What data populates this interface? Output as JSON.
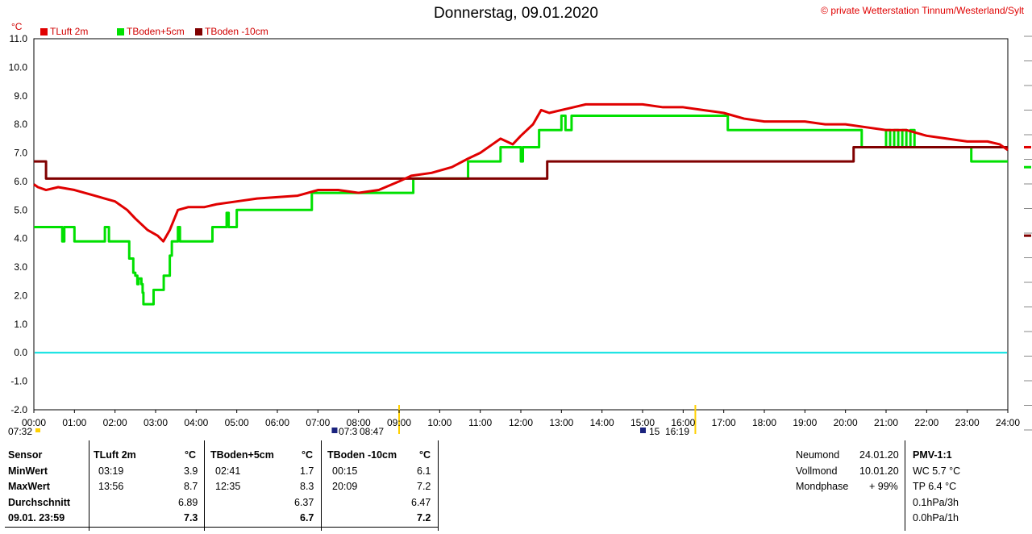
{
  "header": {
    "title": "Donnerstag, 09.01.2020",
    "copyright": "© private Wetterstation Tinnum/Westerland/Sylt",
    "unit": "°C"
  },
  "colors": {
    "tluft": "#e00000",
    "tboden5": "#00e000",
    "tboden10": "#800000",
    "zero": "#00e0e0",
    "grid": "#808080"
  },
  "chart_data": {
    "type": "line",
    "ylabel": "°C",
    "ylim": [
      -2.0,
      11.0
    ],
    "xlim": [
      0,
      24
    ],
    "grid": true,
    "legend_position": "top-left",
    "x_ticks": [
      "00:00",
      "01:00",
      "02:00",
      "03:00",
      "04:00",
      "05:00",
      "06:00",
      "07:00",
      "08:00",
      "09:00",
      "10:00",
      "11:00",
      "12:00",
      "13:00",
      "14:00",
      "15:00",
      "16:00",
      "17:00",
      "18:00",
      "19:00",
      "20:00",
      "21:00",
      "22:00",
      "23:00",
      "24:00"
    ],
    "y_ticks": [
      "11.0",
      "10.0",
      "9.0",
      "8.0",
      "7.0",
      "6.0",
      "5.0",
      "4.0",
      "3.0",
      "2.0",
      "1.0",
      "0.0",
      "-1.0",
      "-2.0"
    ],
    "series": [
      {
        "name": "TLuft 2m",
        "x": [
          0,
          0.1,
          0.3,
          0.6,
          1.0,
          1.5,
          2.0,
          2.3,
          2.5,
          2.8,
          3.05,
          3.19,
          3.35,
          3.55,
          3.8,
          4.2,
          4.5,
          5.0,
          5.5,
          6.5,
          7.0,
          7.5,
          8.0,
          8.5,
          9.0,
          9.3,
          9.8,
          10.3,
          10.7,
          11.0,
          11.3,
          11.5,
          11.8,
          12.0,
          12.3,
          12.5,
          12.7,
          13.0,
          13.3,
          13.6,
          13.93,
          14.5,
          15.0,
          15.5,
          16.0,
          16.5,
          17.0,
          17.5,
          18.0,
          18.5,
          19.0,
          19.5,
          20.0,
          20.5,
          21.0,
          21.5,
          22.0,
          22.5,
          23.0,
          23.5,
          23.8,
          24.0
        ],
        "values": [
          5.9,
          5.8,
          5.7,
          5.8,
          5.7,
          5.5,
          5.3,
          5.0,
          4.7,
          4.3,
          4.1,
          3.9,
          4.3,
          5.0,
          5.1,
          5.1,
          5.2,
          5.3,
          5.4,
          5.5,
          5.7,
          5.7,
          5.6,
          5.7,
          6.0,
          6.2,
          6.3,
          6.5,
          6.8,
          7.0,
          7.3,
          7.5,
          7.3,
          7.6,
          8.0,
          8.5,
          8.4,
          8.5,
          8.6,
          8.7,
          8.7,
          8.7,
          8.7,
          8.6,
          8.6,
          8.5,
          8.4,
          8.2,
          8.1,
          8.1,
          8.1,
          8.0,
          8.0,
          7.9,
          7.8,
          7.8,
          7.6,
          7.5,
          7.4,
          7.4,
          7.3,
          7.1
        ]
      },
      {
        "name": "TBoden+5cm",
        "x": [
          0,
          0.6,
          0.7,
          0.75,
          1.0,
          1.7,
          1.75,
          1.8,
          1.85,
          2.0,
          2.1,
          2.35,
          2.45,
          2.5,
          2.55,
          2.58,
          2.65,
          2.68,
          2.7,
          2.9,
          2.95,
          3.0,
          3.15,
          3.2,
          3.35,
          3.4,
          3.55,
          3.6,
          3.8,
          4.2,
          4.4,
          4.7,
          4.75,
          4.8,
          5.0,
          5.5,
          6.0,
          6.5,
          6.8,
          6.85,
          7.3,
          8.0,
          8.5,
          9.0,
          9.3,
          9.35,
          10.5,
          10.65,
          10.7,
          11.3,
          11.5,
          11.9,
          12.0,
          12.05,
          12.2,
          12.4,
          12.45,
          12.6,
          13.0,
          13.1,
          13.2,
          13.25,
          14.0,
          15.0,
          16.0,
          17.0,
          17.1,
          18.0,
          19.0,
          20.0,
          20.35,
          20.4,
          20.9,
          21.0,
          21.1,
          21.2,
          21.3,
          21.4,
          21.5,
          21.6,
          21.7,
          22.0,
          22.5,
          23.0,
          23.1,
          23.2,
          24.0
        ],
        "values": [
          4.4,
          4.4,
          3.9,
          4.4,
          3.9,
          3.9,
          4.4,
          4.4,
          3.9,
          3.9,
          3.9,
          3.3,
          2.8,
          2.7,
          2.4,
          2.6,
          2.4,
          2.1,
          1.7,
          1.7,
          2.2,
          2.2,
          2.2,
          2.7,
          3.4,
          3.9,
          4.4,
          3.9,
          3.9,
          3.9,
          4.4,
          4.4,
          4.9,
          4.4,
          5.0,
          5.0,
          5.0,
          5.0,
          5.0,
          5.6,
          5.6,
          5.6,
          5.6,
          5.6,
          5.6,
          6.1,
          6.1,
          6.1,
          6.7,
          6.7,
          7.2,
          7.2,
          6.7,
          7.2,
          7.2,
          7.2,
          7.8,
          7.8,
          8.3,
          7.8,
          7.8,
          8.3,
          8.3,
          8.3,
          8.3,
          8.3,
          7.8,
          7.8,
          7.8,
          7.8,
          7.8,
          7.2,
          7.2,
          7.8,
          7.2,
          7.8,
          7.2,
          7.8,
          7.2,
          7.8,
          7.2,
          7.2,
          7.2,
          7.2,
          6.7,
          6.7,
          6.7
        ]
      },
      {
        "name": "TBoden -10cm",
        "x": [
          0,
          0.25,
          0.3,
          1,
          2,
          3,
          4,
          5,
          6,
          7,
          8,
          9,
          10,
          11,
          12,
          12.6,
          12.65,
          13,
          14,
          15,
          16,
          17,
          18,
          19,
          20,
          20.15,
          20.2,
          21,
          22,
          23,
          24
        ],
        "values": [
          6.7,
          6.7,
          6.1,
          6.1,
          6.1,
          6.1,
          6.1,
          6.1,
          6.1,
          6.1,
          6.1,
          6.1,
          6.1,
          6.1,
          6.1,
          6.1,
          6.7,
          6.7,
          6.7,
          6.7,
          6.7,
          6.7,
          6.7,
          6.7,
          6.7,
          6.7,
          7.2,
          7.2,
          7.2,
          7.2,
          7.2
        ]
      }
    ],
    "zero_line": 0.0
  },
  "sun": {
    "rise_prefix": "07:32",
    "rise_marker": "07:3",
    "rise_time": "08:47",
    "set_marker": "15",
    "set_time": "16:19"
  },
  "table": {
    "labels": {
      "sensor": "Sensor",
      "min": "MinWert",
      "max": "MaxWert",
      "avg": "Durchschnitt",
      "current": "09.01. 23:59"
    },
    "cols": [
      {
        "name": "TLuft 2m",
        "unit": "°C",
        "min_time": "03:19",
        "min": "3.9",
        "max_time": "13:56",
        "max": "8.7",
        "avg": "6.89",
        "current": "7.3"
      },
      {
        "name": "TBoden+5cm",
        "unit": "°C",
        "min_time": "02:41",
        "min": "1.7",
        "max_time": "12:35",
        "max": "8.3",
        "avg": "6.37",
        "current": "6.7"
      },
      {
        "name": "TBoden -10cm",
        "unit": "°C",
        "min_time": "00:15",
        "min": "6.1",
        "max_time": "20:09",
        "max": "7.2",
        "avg": "6.47",
        "current": "7.2"
      }
    ],
    "moon": {
      "new_label": "Neumond",
      "new_date": "24.01.20",
      "full_label": "Vollmond",
      "full_date": "10.01.20",
      "phase_label": "Mondphase",
      "phase_value": "+ 99%"
    },
    "pmv": {
      "title": "PMV-1:1",
      "wc": "WC 5.7 °C",
      "tp": "TP 6.4 °C",
      "p3h": "0.1hPa/3h",
      "p1h": "0.0hPa/1h"
    }
  }
}
